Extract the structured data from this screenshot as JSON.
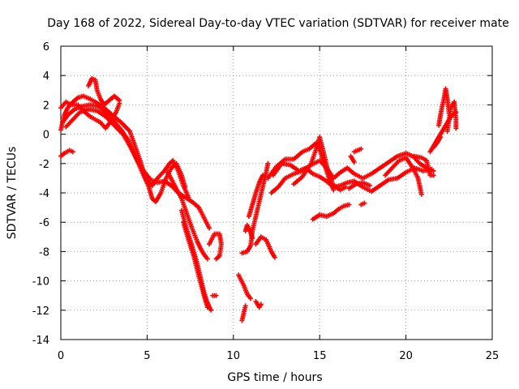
{
  "chart_data": {
    "type": "scatter",
    "title": "Day 168 of 2022, Sidereal Day-to-day VTEC variation (SDTVAR) for receiver mate",
    "xlabel": "GPS time / hours",
    "ylabel": "SDTVAR / TECUs",
    "xlim": [
      0,
      25
    ],
    "ylim": [
      -14,
      6
    ],
    "xticks": [
      0,
      5,
      10,
      15,
      20,
      25
    ],
    "yticks": [
      -14,
      -12,
      -10,
      -8,
      -6,
      -4,
      -2,
      0,
      2,
      4,
      6
    ],
    "grid": true,
    "marker": "plus",
    "color": "#ff0000",
    "series": [
      {
        "segments": [
          [
            [
              0.0,
              -1.5
            ],
            [
              0.2,
              -1.3
            ],
            [
              0.5,
              -1.1
            ],
            [
              0.7,
              -1.2
            ]
          ],
          [
            [
              0.0,
              0.3
            ],
            [
              0.2,
              1.3
            ],
            [
              0.4,
              1.8
            ],
            [
              0.7,
              2.2
            ],
            [
              1.0,
              2.5
            ],
            [
              1.3,
              2.6
            ],
            [
              1.7,
              2.4
            ],
            [
              2.0,
              2.2
            ],
            [
              2.5,
              1.8
            ],
            [
              3.0,
              1.3
            ],
            [
              3.5,
              0.8
            ],
            [
              4.0,
              0.2
            ],
            [
              4.3,
              -0.8
            ],
            [
              4.6,
              -1.8
            ],
            [
              4.8,
              -2.6
            ],
            [
              5.0,
              -3.2
            ],
            [
              5.3,
              -3.5
            ],
            [
              5.6,
              -3.0
            ],
            [
              6.0,
              -2.5
            ],
            [
              6.3,
              -2.0
            ],
            [
              6.5,
              -1.8
            ],
            [
              6.8,
              -2.5
            ],
            [
              7.1,
              -3.5
            ],
            [
              7.4,
              -4.3
            ]
          ],
          [
            [
              0.1,
              0.8
            ],
            [
              0.4,
              1.3
            ],
            [
              0.8,
              1.7
            ],
            [
              1.2,
              1.9
            ],
            [
              1.7,
              2.0
            ],
            [
              2.2,
              1.9
            ],
            [
              2.6,
              1.5
            ],
            [
              3.0,
              1.0
            ],
            [
              3.5,
              0.3
            ],
            [
              3.9,
              -0.4
            ],
            [
              4.2,
              -1.2
            ],
            [
              4.5,
              -2.0
            ],
            [
              4.8,
              -2.8
            ],
            [
              5.1,
              -3.6
            ],
            [
              5.3,
              -4.4
            ],
            [
              5.5,
              -4.6
            ],
            [
              5.8,
              -4.0
            ],
            [
              6.1,
              -3.0
            ],
            [
              6.4,
              -2.3
            ],
            [
              6.7,
              -2.0
            ],
            [
              7.0,
              -2.8
            ],
            [
              7.2,
              -3.6
            ]
          ],
          [
            [
              0.3,
              0.5
            ],
            [
              0.7,
              1.0
            ],
            [
              1.1,
              1.5
            ],
            [
              1.6,
              1.7
            ],
            [
              2.1,
              1.6
            ],
            [
              2.6,
              1.2
            ],
            [
              3.1,
              0.6
            ],
            [
              3.6,
              0.0
            ],
            [
              4.0,
              -0.8
            ],
            [
              4.4,
              -1.7
            ],
            [
              4.8,
              -2.5
            ],
            [
              5.2,
              -3.1
            ],
            [
              5.6,
              -3.3
            ],
            [
              6.0,
              -3.2
            ],
            [
              6.4,
              -3.5
            ],
            [
              6.8,
              -4.0
            ],
            [
              7.2,
              -4.3
            ],
            [
              7.6,
              -4.6
            ],
            [
              8.0,
              -5.0
            ],
            [
              8.3,
              -5.7
            ],
            [
              8.6,
              -6.4
            ]
          ],
          [
            [
              0.0,
              1.8
            ],
            [
              0.3,
              2.2
            ],
            [
              0.6,
              2.0
            ],
            [
              1.0,
              2.0
            ],
            [
              1.3,
              1.6
            ],
            [
              1.7,
              1.2
            ],
            [
              2.0,
              1.0
            ],
            [
              2.3,
              0.8
            ],
            [
              2.6,
              0.4
            ],
            [
              2.9,
              0.9
            ],
            [
              3.2,
              1.5
            ],
            [
              3.4,
              2.1
            ]
          ],
          [
            [
              1.6,
              3.3
            ],
            [
              1.8,
              3.8
            ],
            [
              2.0,
              3.7
            ],
            [
              2.1,
              3.0
            ],
            [
              2.3,
              2.4
            ],
            [
              2.5,
              2.0
            ],
            [
              2.7,
              2.2
            ],
            [
              2.9,
              2.4
            ],
            [
              3.1,
              2.6
            ],
            [
              3.4,
              2.3
            ]
          ],
          [
            [
              6.2,
              -2.6
            ],
            [
              6.6,
              -3.5
            ],
            [
              7.0,
              -4.4
            ],
            [
              7.3,
              -5.4
            ],
            [
              7.6,
              -6.4
            ],
            [
              7.9,
              -7.3
            ],
            [
              8.1,
              -7.8
            ],
            [
              8.3,
              -8.2
            ],
            [
              8.5,
              -8.5
            ]
          ],
          [
            [
              7.0,
              -5.2
            ],
            [
              7.3,
              -6.5
            ],
            [
              7.6,
              -7.6
            ],
            [
              7.9,
              -8.8
            ],
            [
              8.1,
              -9.8
            ],
            [
              8.3,
              -10.8
            ],
            [
              8.5,
              -11.5
            ],
            [
              8.7,
              -12.0
            ]
          ],
          [
            [
              7.1,
              -6.0
            ],
            [
              7.4,
              -7.2
            ],
            [
              7.7,
              -8.3
            ],
            [
              8.0,
              -9.7
            ],
            [
              8.3,
              -11.0
            ],
            [
              8.5,
              -11.8
            ]
          ],
          [
            [
              8.6,
              -7.5
            ],
            [
              8.9,
              -6.8
            ],
            [
              9.2,
              -6.8
            ],
            [
              9.3,
              -7.5
            ],
            [
              9.2,
              -8.3
            ],
            [
              9.0,
              -8.5
            ]
          ],
          [
            [
              8.8,
              -11.0
            ],
            [
              9.0,
              -11.0
            ]
          ],
          [
            [
              10.3,
              -9.6
            ],
            [
              10.6,
              -10.3
            ],
            [
              10.8,
              -10.9
            ],
            [
              11.0,
              -11.2
            ]
          ],
          [
            [
              10.5,
              -12.7
            ],
            [
              10.6,
              -12.2
            ],
            [
              10.7,
              -11.7
            ]
          ],
          [
            [
              11.3,
              -11.4
            ],
            [
              11.5,
              -11.8
            ],
            [
              11.6,
              -11.6
            ]
          ],
          [
            [
              10.5,
              -8.1
            ],
            [
              10.8,
              -8.0
            ],
            [
              11.0,
              -7.6
            ],
            [
              11.1,
              -6.6
            ],
            [
              11.3,
              -5.6
            ],
            [
              11.5,
              -4.6
            ],
            [
              11.7,
              -3.6
            ],
            [
              11.9,
              -2.6
            ],
            [
              12.0,
              -2.0
            ]
          ],
          [
            [
              10.9,
              -5.6
            ],
            [
              11.1,
              -4.8
            ],
            [
              11.3,
              -4.0
            ],
            [
              11.5,
              -3.3
            ],
            [
              11.7,
              -2.8
            ]
          ],
          [
            [
              11.3,
              -7.5
            ],
            [
              11.6,
              -7.0
            ],
            [
              11.9,
              -7.2
            ],
            [
              12.2,
              -8.0
            ],
            [
              12.4,
              -8.4
            ]
          ],
          [
            [
              10.7,
              -6.6
            ],
            [
              10.8,
              -6.2
            ],
            [
              11.0,
              -6.7
            ],
            [
              11.1,
              -7.1
            ]
          ],
          [
            [
              12.0,
              -3.0
            ],
            [
              12.5,
              -2.2
            ],
            [
              13.0,
              -1.7
            ],
            [
              13.5,
              -1.7
            ],
            [
              14.0,
              -1.2
            ],
            [
              14.4,
              -1.0
            ],
            [
              14.8,
              -0.6
            ],
            [
              15.0,
              -1.0
            ],
            [
              15.2,
              -1.8
            ],
            [
              15.4,
              -2.5
            ],
            [
              15.6,
              -3.2
            ],
            [
              15.8,
              -3.8
            ]
          ],
          [
            [
              12.3,
              -2.8
            ],
            [
              12.8,
              -2.0
            ],
            [
              13.3,
              -2.1
            ],
            [
              13.8,
              -2.5
            ],
            [
              14.2,
              -2.3
            ],
            [
              14.6,
              -2.7
            ],
            [
              15.0,
              -2.9
            ],
            [
              15.4,
              -3.2
            ],
            [
              15.8,
              -3.6
            ],
            [
              16.2,
              -3.5
            ],
            [
              16.6,
              -3.3
            ],
            [
              17.0,
              -3.2
            ],
            [
              17.5,
              -3.6
            ],
            [
              18.0,
              -3.9
            ],
            [
              18.5,
              -3.5
            ],
            [
              19.0,
              -3.1
            ],
            [
              19.5,
              -3.0
            ],
            [
              20.0,
              -2.6
            ],
            [
              20.5,
              -2.3
            ],
            [
              21.0,
              -2.5
            ],
            [
              21.5,
              -2.4
            ]
          ],
          [
            [
              12.2,
              -4.0
            ],
            [
              12.6,
              -3.6
            ],
            [
              13.0,
              -3.0
            ],
            [
              13.5,
              -2.7
            ],
            [
              14.0,
              -2.5
            ],
            [
              14.5,
              -2.1
            ],
            [
              15.0,
              -1.8
            ],
            [
              15.4,
              -2.3
            ],
            [
              15.8,
              -3.0
            ],
            [
              16.2,
              -2.6
            ],
            [
              16.6,
              -2.3
            ],
            [
              17.0,
              -2.7
            ],
            [
              17.5,
              -3.0
            ],
            [
              18.0,
              -2.7
            ],
            [
              18.5,
              -2.3
            ],
            [
              19.0,
              -1.9
            ],
            [
              19.5,
              -1.5
            ],
            [
              20.0,
              -1.3
            ],
            [
              20.4,
              -1.5
            ],
            [
              20.8,
              -2.0
            ],
            [
              21.2,
              -2.3
            ],
            [
              21.6,
              -2.5
            ]
          ],
          [
            [
              13.5,
              -3.4
            ],
            [
              14.0,
              -2.9
            ],
            [
              14.5,
              -2.0
            ],
            [
              14.8,
              -1.0
            ],
            [
              15.0,
              -0.2
            ],
            [
              15.2,
              -1.1
            ],
            [
              15.5,
              -2.6
            ],
            [
              15.8,
              -3.5
            ],
            [
              16.2,
              -3.8
            ],
            [
              16.5,
              -3.6
            ]
          ],
          [
            [
              14.6,
              -5.8
            ],
            [
              15.0,
              -5.5
            ],
            [
              15.4,
              -5.6
            ],
            [
              15.8,
              -5.4
            ],
            [
              16.1,
              -5.1
            ],
            [
              16.4,
              -4.9
            ],
            [
              16.7,
              -4.8
            ]
          ],
          [
            [
              16.7,
              -3.7
            ],
            [
              17.1,
              -3.4
            ],
            [
              17.5,
              -3.3
            ],
            [
              17.9,
              -3.5
            ]
          ],
          [
            [
              16.8,
              -1.5
            ],
            [
              17.0,
              -1.9
            ]
          ],
          [
            [
              17.4,
              -4.8
            ],
            [
              17.6,
              -4.7
            ]
          ],
          [
            [
              17.0,
              -1.2
            ],
            [
              17.4,
              -1.0
            ]
          ],
          [
            [
              18.8,
              -2.8
            ],
            [
              19.2,
              -2.3
            ],
            [
              19.6,
              -1.8
            ],
            [
              20.0,
              -1.6
            ],
            [
              20.4,
              -2.3
            ],
            [
              20.7,
              -3.0
            ],
            [
              20.9,
              -4.1
            ]
          ],
          [
            [
              20.5,
              -1.5
            ],
            [
              20.9,
              -1.6
            ],
            [
              21.2,
              -1.8
            ],
            [
              21.4,
              -2.8
            ],
            [
              21.6,
              -2.8
            ]
          ],
          [
            [
              21.4,
              -1.2
            ],
            [
              21.7,
              -0.6
            ],
            [
              22.0,
              0.0
            ],
            [
              22.3,
              0.6
            ],
            [
              22.6,
              1.2
            ],
            [
              22.9,
              1.5
            ]
          ],
          [
            [
              21.9,
              0.6
            ],
            [
              22.0,
              1.3
            ],
            [
              22.1,
              1.9
            ],
            [
              22.2,
              2.4
            ],
            [
              22.3,
              3.1
            ],
            [
              22.4,
              2.4
            ],
            [
              22.5,
              1.4
            ]
          ],
          [
            [
              22.4,
              0.2
            ],
            [
              22.5,
              1.0
            ],
            [
              22.6,
              1.8
            ],
            [
              22.8,
              2.2
            ],
            [
              22.9,
              1.0
            ],
            [
              22.9,
              0.4
            ]
          ],
          [
            [
              21.6,
              -0.9
            ],
            [
              21.8,
              -0.6
            ],
            [
              22.0,
              -0.2
            ]
          ]
        ]
      }
    ]
  }
}
